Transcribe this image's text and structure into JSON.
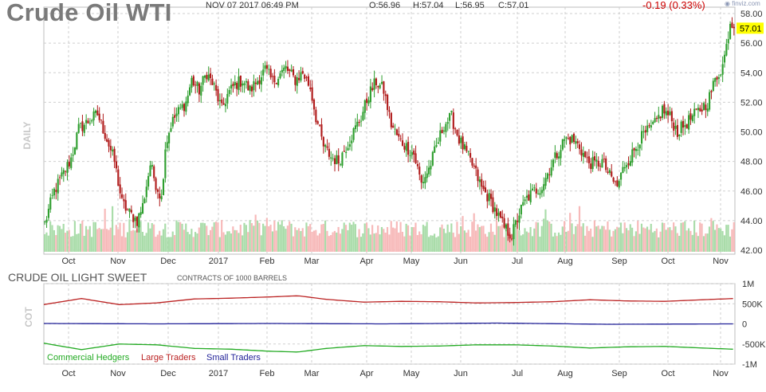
{
  "header": {
    "title": "Crude Oil WTI",
    "datetime": "NOV 07 2017 06:49 PM",
    "open": "O:56.96",
    "high": "H:57.04",
    "low": "L:56.95",
    "close": "C:57.01",
    "change": "-0.19 (0.33%)",
    "brand": "finviz.com",
    "last_price": "57.01",
    "side_label": "DAILY"
  },
  "cot": {
    "title": "CRUDE OIL LIGHT SWEET",
    "subtitle": "CONTRACTS OF 1000 BARRELS",
    "side_label": "COT",
    "y_ticks": [
      "1M",
      "500K",
      "0",
      "-500K",
      "-1M"
    ],
    "legend": [
      {
        "label": "Commercial Hedgers",
        "color": "#22aa22"
      },
      {
        "label": "Large Traders",
        "color": "#bb2222"
      },
      {
        "label": "Small Traders",
        "color": "#222299"
      }
    ]
  },
  "colors": {
    "up": "#2e9e2e",
    "down": "#b01a1a",
    "vol_up": "#a9dca9",
    "vol_down": "#f7b9b9",
    "grid": "#cfcfcf",
    "price_tag": "#ffff00"
  },
  "chart_data": [
    {
      "type": "candlestick",
      "title": "Crude Oil WTI",
      "ylabel": "DAILY",
      "x_tick_labels": [
        "Oct",
        "Nov",
        "Dec",
        "2017",
        "Feb",
        "Mar",
        "Apr",
        "May",
        "Jun",
        "Jul",
        "Aug",
        "Sep",
        "Oct",
        "Nov"
      ],
      "y_tick_labels": [
        "58.00",
        "56.00",
        "54.00",
        "52.00",
        "50.00",
        "48.00",
        "46.00",
        "44.00",
        "42.00"
      ],
      "ylim": [
        42,
        58
      ],
      "last_value": 57.01,
      "grid": true,
      "anchors": [
        [
          0,
          43.8
        ],
        [
          5,
          46.0
        ],
        [
          10,
          47.2
        ],
        [
          14,
          48.2
        ],
        [
          18,
          50.2
        ],
        [
          24,
          50.8
        ],
        [
          28,
          51.2
        ],
        [
          33,
          49.5
        ],
        [
          37,
          48.0
        ],
        [
          41,
          45.2
        ],
        [
          45,
          44.5
        ],
        [
          49,
          44.0
        ],
        [
          52,
          45.0
        ],
        [
          56,
          47.8
        ],
        [
          59,
          46.5
        ],
        [
          62,
          45.5
        ],
        [
          64,
          49.0
        ],
        [
          67,
          50.5
        ],
        [
          70,
          51.2
        ],
        [
          75,
          52.0
        ],
        [
          78,
          53.5
        ],
        [
          82,
          52.8
        ],
        [
          86,
          54.0
        ],
        [
          90,
          53.0
        ],
        [
          94,
          51.5
        ],
        [
          97,
          52.5
        ],
        [
          101,
          53.2
        ],
        [
          105,
          53.5
        ],
        [
          109,
          52.8
        ],
        [
          113,
          53.5
        ],
        [
          117,
          54.2
        ],
        [
          121,
          53.4
        ],
        [
          124,
          53.8
        ],
        [
          128,
          54.3
        ],
        [
          133,
          53.5
        ],
        [
          137,
          54.0
        ],
        [
          141,
          53.0
        ],
        [
          144,
          51.0
        ],
        [
          148,
          49.0
        ],
        [
          152,
          48.3
        ],
        [
          156,
          48.0
        ],
        [
          160,
          49.0
        ],
        [
          164,
          50.0
        ],
        [
          168,
          51.0
        ],
        [
          172,
          52.5
        ],
        [
          176,
          53.4
        ],
        [
          180,
          52.8
        ],
        [
          184,
          50.5
        ],
        [
          188,
          49.5
        ],
        [
          192,
          49.0
        ],
        [
          196,
          48.5
        ],
        [
          200,
          46.5
        ],
        [
          204,
          47.5
        ],
        [
          208,
          49.0
        ],
        [
          212,
          50.5
        ],
        [
          216,
          51.0
        ],
        [
          220,
          49.5
        ],
        [
          224,
          48.5
        ],
        [
          228,
          47.5
        ],
        [
          232,
          46.2
        ],
        [
          236,
          45.5
        ],
        [
          240,
          44.5
        ],
        [
          244,
          43.5
        ],
        [
          248,
          43.0
        ],
        [
          252,
          44.5
        ],
        [
          256,
          45.5
        ],
        [
          260,
          46.0
        ],
        [
          264,
          46.3
        ],
        [
          268,
          47.5
        ],
        [
          272,
          48.5
        ],
        [
          276,
          49.5
        ],
        [
          280,
          49.5
        ],
        [
          284,
          49.0
        ],
        [
          288,
          48.0
        ],
        [
          292,
          47.8
        ],
        [
          296,
          48.0
        ],
        [
          300,
          47.0
        ],
        [
          304,
          46.3
        ],
        [
          308,
          47.8
        ],
        [
          312,
          48.5
        ],
        [
          316,
          49.5
        ],
        [
          320,
          50.0
        ],
        [
          324,
          50.5
        ],
        [
          328,
          51.5
        ],
        [
          332,
          51.0
        ],
        [
          336,
          50.0
        ],
        [
          340,
          50.5
        ],
        [
          344,
          51.0
        ],
        [
          348,
          51.5
        ],
        [
          352,
          52.0
        ],
        [
          356,
          53.5
        ],
        [
          360,
          54.5
        ],
        [
          362,
          55.8
        ],
        [
          364,
          57.5
        ],
        [
          366,
          57.0
        ]
      ]
    },
    {
      "type": "line",
      "title": "CRUDE OIL LIGHT SWEET",
      "ylabel": "COT",
      "x_tick_labels": [
        "Oct",
        "Nov",
        "Dec",
        "2017",
        "Feb",
        "Mar",
        "Apr",
        "May",
        "Jun",
        "Jul",
        "Aug",
        "Sep",
        "Oct",
        "Nov"
      ],
      "y_tick_labels": [
        "1M",
        "500K",
        "0",
        "-500K",
        "-1M"
      ],
      "ylim": [
        -1000000,
        1000000
      ],
      "series": [
        {
          "name": "Large Traders",
          "values": [
            [
              0,
              480000
            ],
            [
              20,
              630000
            ],
            [
              40,
              480000
            ],
            [
              60,
              520000
            ],
            [
              80,
              620000
            ],
            [
              100,
              640000
            ],
            [
              120,
              670000
            ],
            [
              135,
              700000
            ],
            [
              150,
              610000
            ],
            [
              170,
              540000
            ],
            [
              190,
              560000
            ],
            [
              210,
              550000
            ],
            [
              230,
              520000
            ],
            [
              250,
              530000
            ],
            [
              270,
              550000
            ],
            [
              290,
              600000
            ],
            [
              310,
              570000
            ],
            [
              330,
              560000
            ],
            [
              350,
              600000
            ],
            [
              366,
              630000
            ]
          ]
        },
        {
          "name": "Small Traders",
          "values": [
            [
              0,
              10000
            ],
            [
              60,
              0
            ],
            [
              120,
              10000
            ],
            [
              180,
              0
            ],
            [
              240,
              20000
            ],
            [
              300,
              -10000
            ],
            [
              366,
              0
            ]
          ]
        },
        {
          "name": "Commercial Hedgers",
          "values": [
            [
              0,
              -480000
            ],
            [
              20,
              -640000
            ],
            [
              40,
              -500000
            ],
            [
              60,
              -520000
            ],
            [
              80,
              -610000
            ],
            [
              100,
              -630000
            ],
            [
              120,
              -680000
            ],
            [
              135,
              -700000
            ],
            [
              150,
              -610000
            ],
            [
              170,
              -540000
            ],
            [
              190,
              -560000
            ],
            [
              210,
              -550000
            ],
            [
              230,
              -520000
            ],
            [
              250,
              -520000
            ],
            [
              270,
              -550000
            ],
            [
              290,
              -600000
            ],
            [
              310,
              -570000
            ],
            [
              330,
              -560000
            ],
            [
              350,
              -600000
            ],
            [
              366,
              -630000
            ]
          ]
        }
      ]
    }
  ]
}
